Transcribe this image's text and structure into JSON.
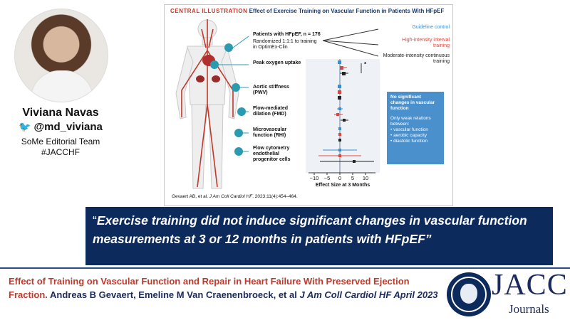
{
  "profile": {
    "name": "Viviana Navas",
    "handle": "@md_viviana",
    "team_line1": "SoMe Editorial Team",
    "team_line2": "#JACCHF"
  },
  "illustration": {
    "label": "CENTRAL ILLUSTRATION",
    "title": "Effect of Exercise Training on Vascular Function in Patients With HFpEF",
    "patients_line": "Patients with HFpEF, n = 176",
    "randomized_line1": "Randomized 1:1:1 to training",
    "randomized_line2": "in OptimEx-Clin",
    "arms": [
      {
        "text": "Guideline control",
        "color": "#3b8ed0"
      },
      {
        "text": "High-intensity interval training",
        "color": "#e0453a"
      },
      {
        "text": "Moderate-intensity continuous training",
        "color": "#222222"
      }
    ],
    "outcomes": [
      "Peak oxygen uptake",
      "Aortic stiffness (PWV)",
      "Flow-mediated dilation (FMD)",
      "Microvascular function (RHI)",
      "Flow cytometry endothelial progenitor cells"
    ],
    "significance_mark": "*",
    "x_ticks": [
      "−10",
      "−5",
      "0",
      "5",
      "10"
    ],
    "x_axis_label": "Effect Size at 3 Months",
    "box_title": "No significant changes in vascular function",
    "box_intro": "Only weak relations between:",
    "box_items": [
      "• vascular function",
      "• aerobic capacity",
      "• diastolic function"
    ],
    "reference_authors": "Gevaert AB, et al. ",
    "reference_journal": "J Am Coll Cardiol HF",
    "reference_rest": ". 2023;11(4):454–464."
  },
  "quote": {
    "open_mark": "“",
    "text": "Exercise training did not induce significant changes in vascular function measurements at 3 or 12 months in patients with HFpEF”"
  },
  "footer": {
    "title": "Effect of Training on Vascular Function and Repair in Heart Failure With Preserved Ejection Fraction.",
    "authors": " Andreas B Gevaert, Emeline M Van Craenenbroeck, et al ",
    "journal": "J Am Coll Cardiol HF April 2023"
  },
  "logo": {
    "brand": "JACC",
    "sub": "Journals"
  },
  "colors": {
    "navy": "#0d2a5c",
    "red": "#c0392b",
    "blue": "#3b8ed0"
  }
}
